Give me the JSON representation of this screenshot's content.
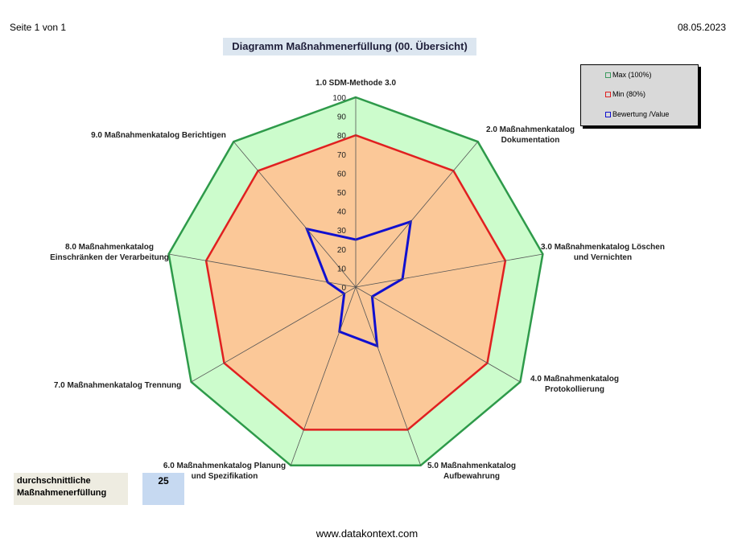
{
  "header": {
    "page_info": "Seite 1 von 1",
    "date": "08.05.2023"
  },
  "title": "Diagramm Maßnahmenerfüllung (00. Übersicht)",
  "legend": {
    "items": [
      {
        "label": "Max (100%)",
        "color": "#3c9a5f"
      },
      {
        "label": "Min (80%)",
        "color": "#e02020"
      },
      {
        "label": "Bewertung /Value",
        "color": "#1010d0"
      }
    ]
  },
  "chart_data": {
    "type": "radar",
    "title": "Diagramm Maßnahmenerfüllung (00. Übersicht)",
    "categories": [
      "1.0 SDM-Methode 3.0",
      "2.0 Maßnahmenkatalog Dokumentation",
      "3.0 Maßnahmenkatalog Löschen und Vernichten",
      "4.0 Maßnahmenkatalog Protokollierung",
      "5.0 Maßnahmenkatalog Aufbewahrung",
      "6.0 Maßnahmenkatalog Planung und Spezifikation",
      "7.0 Maßnahmenkatalog Trennung",
      "8.0 Maßnahmenkatalog Einschränken der Verarbeitung",
      "9.0 Maßnahmenkatalog Berichtigen"
    ],
    "range": [
      0,
      100
    ],
    "ticks": [
      "0",
      "10",
      "20",
      "30",
      "40",
      "50",
      "60",
      "70",
      "80",
      "90",
      "100"
    ],
    "series": [
      {
        "name": "Max (100%)",
        "values": [
          100,
          100,
          100,
          100,
          100,
          100,
          100,
          100,
          100
        ],
        "stroke": "#2e9a4a",
        "fill": "#ccfccc"
      },
      {
        "name": "Min (80%)",
        "values": [
          80,
          80,
          80,
          80,
          80,
          80,
          80,
          80,
          80
        ],
        "stroke": "#e02020",
        "fill": "#fbc898"
      },
      {
        "name": "Bewertung /Value",
        "values": [
          25,
          45,
          25,
          10,
          33,
          25,
          7,
          15,
          40
        ],
        "stroke": "#1010d0",
        "fill": "none"
      }
    ]
  },
  "axis_labels": [
    [
      "1.0 SDM-Methode 3.0"
    ],
    [
      "2.0 Maßnahmenkatalog",
      "Dokumentation"
    ],
    [
      "3.0 Maßnahmenkatalog Löschen",
      "und Vernichten"
    ],
    [
      "4.0 Maßnahmenkatalog",
      "Protokollierung"
    ],
    [
      "5.0 Maßnahmenkatalog",
      "Aufbewahrung"
    ],
    [
      "6.0 Maßnahmenkatalog Planung",
      "und Spezifikation"
    ],
    [
      "7.0 Maßnahmenkatalog Trennung"
    ],
    [
      "8.0 Maßnahmenkatalog",
      "Einschränken der Verarbeitung"
    ],
    [
      "9.0 Maßnahmenkatalog Berichtigen"
    ]
  ],
  "summary": {
    "label_line1": "durchschnittliche",
    "label_line2": "Maßnahmenerfüllung",
    "value": "25"
  },
  "footer": "www.datakontext.com"
}
